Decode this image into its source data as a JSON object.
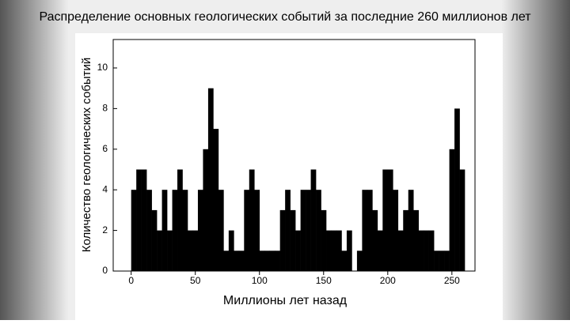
{
  "chart_data": {
    "type": "histogram",
    "title": "Распределение основных геологических событий за последние 260 миллионов лет",
    "x_label": "Миллионы лет назад",
    "y_label": "Количество геологических событий",
    "bins": [
      0,
      4,
      8,
      12,
      16,
      20,
      24,
      28,
      32,
      36,
      40,
      44,
      48,
      52,
      56,
      60,
      64,
      68,
      72,
      76,
      80,
      84,
      88,
      92,
      96,
      100,
      104,
      108,
      112,
      116,
      120,
      124,
      128,
      132,
      136,
      140,
      144,
      148,
      152,
      156,
      160,
      164,
      168,
      172,
      176,
      180,
      184,
      188,
      192,
      196,
      200,
      204,
      208,
      212,
      216,
      220,
      224,
      228,
      232,
      236,
      240,
      244,
      248,
      252,
      256,
      260
    ],
    "counts": [
      4,
      5,
      5,
      4,
      3,
      2,
      4,
      2,
      4,
      5,
      4,
      2,
      2,
      4,
      6,
      9,
      7,
      4,
      1,
      2,
      1,
      1,
      4,
      5,
      4,
      1,
      1,
      1,
      1,
      3,
      4,
      3,
      2,
      4,
      4,
      5,
      4,
      3,
      2,
      2,
      2,
      1,
      2,
      0,
      1,
      4,
      4,
      3,
      2,
      5,
      5,
      4,
      2,
      3,
      4,
      3,
      2,
      2,
      2,
      1,
      1,
      1,
      6,
      8,
      5
    ],
    "color": "#000000",
    "xlim": [
      -14,
      268
    ],
    "ylim": [
      0,
      11.4
    ],
    "xticks": [
      0,
      50,
      100,
      150,
      200,
      250
    ],
    "yticks": [
      0,
      2,
      4,
      6,
      8,
      10
    ]
  }
}
